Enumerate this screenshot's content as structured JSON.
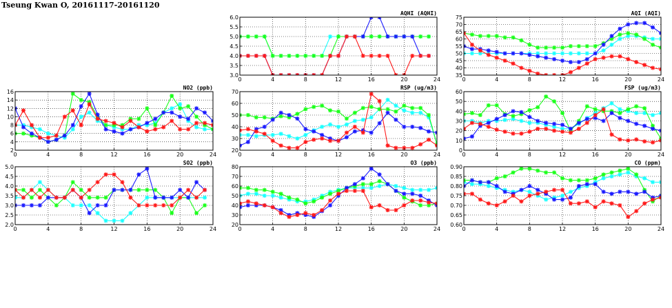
{
  "page": {
    "title": "Tseung Kwan O, 20161117-20161120"
  },
  "colors": {
    "s1": "#ff1a1a",
    "s2": "#1a1aff",
    "s3": "#1aff1a",
    "s4": "#1affff"
  },
  "chart_data": [
    {
      "id": "aqhi",
      "type": "line",
      "title": "AQHI (AQHI)",
      "xlim": [
        0,
        24
      ],
      "ylim": [
        3.0,
        6.0
      ],
      "xticks": [
        0,
        4,
        8,
        12,
        16,
        20,
        24
      ],
      "yticks": [
        3.0,
        3.5,
        4.0,
        4.5,
        5.0,
        5.5,
        6.0
      ],
      "ydecimals": 1,
      "grid": true,
      "series": [
        {
          "color": "s1",
          "values": [
            4,
            4,
            4,
            4,
            3,
            3,
            3,
            3,
            3,
            3,
            3,
            4,
            4,
            5,
            5,
            4,
            4,
            4,
            4,
            3,
            3,
            4,
            4,
            4
          ]
        },
        {
          "color": "s2",
          "values": [
            4,
            4,
            4,
            4,
            3,
            3,
            3,
            3,
            3,
            3,
            3,
            4,
            4,
            5,
            5,
            5,
            6,
            6,
            5,
            5,
            5,
            5,
            4,
            4
          ]
        },
        {
          "color": "s3",
          "values": [
            5,
            5,
            5,
            5,
            4,
            4,
            4,
            4,
            4,
            4,
            4,
            4,
            5,
            5,
            5,
            5,
            5,
            5,
            5,
            5,
            5,
            5,
            5,
            5
          ]
        },
        {
          "color": "s4",
          "values": [
            5,
            5,
            5,
            5,
            4,
            4,
            4,
            4,
            4,
            4,
            4,
            5,
            5,
            5,
            5,
            5,
            5,
            5,
            5,
            5,
            5,
            5,
            5,
            5
          ]
        }
      ]
    },
    {
      "id": "aqi",
      "type": "line",
      "title": "AQI (AQI)",
      "xlim": [
        0,
        24
      ],
      "ylim": [
        35,
        75
      ],
      "xticks": [
        0,
        4,
        8,
        12,
        16,
        20,
        24
      ],
      "yticks": [
        35,
        40,
        45,
        50,
        55,
        60,
        65,
        70,
        75
      ],
      "ydecimals": 0,
      "grid": true,
      "series": [
        {
          "color": "s1",
          "values": [
            64,
            56,
            52,
            49,
            47,
            45,
            43,
            40,
            38,
            36,
            35,
            35,
            35,
            37,
            40,
            43,
            46,
            47,
            48,
            48,
            46,
            44,
            42,
            40,
            39
          ]
        },
        {
          "color": "s2",
          "values": [
            55,
            53,
            53,
            52,
            51,
            50,
            50,
            50,
            49,
            48,
            47,
            46,
            45,
            44,
            44,
            46,
            50,
            56,
            62,
            67,
            70,
            71,
            71,
            68,
            64
          ]
        },
        {
          "color": "s3",
          "values": [
            64,
            63,
            62,
            62,
            62,
            61,
            61,
            59,
            56,
            54,
            54,
            54,
            54,
            55,
            55,
            55,
            55,
            57,
            60,
            63,
            64,
            63,
            60,
            56,
            54
          ]
        },
        {
          "color": "s4",
          "values": [
            50,
            50,
            50,
            50,
            50,
            50,
            50,
            50,
            50,
            50,
            50,
            50,
            50,
            50,
            50,
            50,
            50,
            52,
            56,
            60,
            62,
            62,
            61,
            60,
            60
          ]
        }
      ]
    },
    {
      "id": "no2",
      "type": "line",
      "title": "NO2 (ppb)",
      "xlim": [
        0,
        24
      ],
      "ylim": [
        2,
        16
      ],
      "xticks": [
        0,
        4,
        8,
        12,
        16,
        20,
        24
      ],
      "yticks": [
        2,
        4,
        6,
        8,
        10,
        12,
        14,
        16
      ],
      "ydecimals": 0,
      "grid": true,
      "series": [
        {
          "color": "s1",
          "values": [
            8,
            11.5,
            8,
            5,
            5,
            5.5,
            10,
            11.5,
            8,
            13,
            9.5,
            9,
            8.5,
            7.5,
            9,
            7.5,
            6.5,
            7,
            7.5,
            9,
            7,
            7,
            8.5,
            8.5,
            8
          ]
        },
        {
          "color": "s2",
          "values": [
            12,
            7.5,
            6,
            5,
            4,
            4.5,
            5.5,
            8,
            12.5,
            15.5,
            10.5,
            7,
            6.5,
            6,
            7,
            7.5,
            8.5,
            9.5,
            11,
            11,
            10,
            9.5,
            12,
            11,
            9
          ]
        },
        {
          "color": "s3",
          "values": [
            6,
            6,
            5.5,
            5,
            4,
            4.5,
            5.5,
            15.5,
            14,
            13.5,
            10,
            8,
            8,
            8,
            9.5,
            9.5,
            12,
            8,
            11,
            15,
            12,
            12.5,
            10,
            8,
            7
          ]
        },
        {
          "color": "s4",
          "values": [
            8,
            8,
            7.5,
            7,
            6,
            5.5,
            5,
            7,
            10,
            11,
            9,
            8,
            7.5,
            7,
            7,
            8,
            8,
            8.5,
            11,
            12,
            13,
            9,
            7.5,
            7,
            7
          ]
        }
      ]
    },
    {
      "id": "rsp",
      "type": "line",
      "title": "RSP (ug/m3)",
      "xlim": [
        0,
        24
      ],
      "ylim": [
        20,
        70
      ],
      "xticks": [
        0,
        4,
        8,
        12,
        16,
        20,
        24
      ],
      "yticks": [
        20,
        30,
        40,
        50,
        60,
        70
      ],
      "ydecimals": 0,
      "grid": true,
      "series": [
        {
          "color": "s1",
          "values": [
            37,
            38,
            36,
            34,
            28,
            24,
            22,
            22,
            27,
            29,
            30,
            28,
            28,
            35,
            40,
            35,
            68,
            62,
            24,
            22,
            22,
            22,
            25,
            29,
            24
          ]
        },
        {
          "color": "s2",
          "values": [
            24,
            27,
            38,
            40,
            46,
            52,
            50,
            47,
            38,
            36,
            33,
            30,
            28,
            31,
            36,
            37,
            35,
            43,
            52,
            46,
            40,
            40,
            39,
            36,
            35
          ]
        },
        {
          "color": "s3",
          "values": [
            50,
            50,
            48,
            48,
            47,
            49,
            48,
            51,
            55,
            57,
            58,
            54,
            53,
            47,
            52,
            56,
            57,
            55,
            55,
            53,
            58,
            56,
            56,
            50,
            25
          ]
        },
        {
          "color": "s4",
          "values": [
            33,
            33,
            32,
            33,
            33,
            34,
            32,
            30,
            33,
            37,
            40,
            42,
            40,
            42,
            45,
            46,
            48,
            55,
            63,
            58,
            54,
            52,
            52,
            48,
            25
          ]
        }
      ]
    },
    {
      "id": "fsp",
      "type": "line",
      "title": "FSP (ug/m3)",
      "xlim": [
        0,
        24
      ],
      "ylim": [
        0,
        60
      ],
      "xticks": [
        0,
        4,
        8,
        12,
        16,
        20,
        24
      ],
      "yticks": [
        0,
        10,
        20,
        30,
        40,
        50,
        60
      ],
      "ydecimals": 0,
      "grid": true,
      "series": [
        {
          "color": "s1",
          "values": [
            22,
            28,
            27,
            24,
            21,
            19,
            17,
            17,
            19,
            22,
            22,
            20,
            19,
            18,
            22,
            28,
            36,
            42,
            16,
            11,
            10,
            11,
            9,
            8,
            10
          ]
        },
        {
          "color": "s2",
          "values": [
            12,
            14,
            25,
            28,
            32,
            36,
            40,
            39,
            34,
            30,
            28,
            27,
            26,
            22,
            28,
            32,
            33,
            30,
            38,
            33,
            30,
            27,
            25,
            22,
            20
          ]
        },
        {
          "color": "s3",
          "values": [
            37,
            38,
            36,
            46,
            46,
            37,
            35,
            37,
            41,
            44,
            55,
            50,
            38,
            20,
            30,
            45,
            42,
            40,
            40,
            38,
            42,
            45,
            43,
            25,
            12
          ]
        },
        {
          "color": "s4",
          "values": [
            30,
            30,
            28,
            30,
            30,
            31,
            32,
            30,
            28,
            28,
            26,
            24,
            22,
            22,
            27,
            33,
            38,
            43,
            48,
            42,
            40,
            38,
            38,
            36,
            38
          ]
        }
      ]
    },
    {
      "id": "so2",
      "type": "line",
      "title": "SO2 (ppb)",
      "xlim": [
        0,
        24
      ],
      "ylim": [
        2.0,
        5.0
      ],
      "xticks": [
        0,
        4,
        8,
        12,
        16,
        20,
        24
      ],
      "yticks": [
        2.0,
        2.5,
        3.0,
        3.5,
        4.0,
        4.5,
        5.0
      ],
      "ydecimals": 1,
      "grid": true,
      "series": [
        {
          "color": "s1",
          "values": [
            3.8,
            3.4,
            3.8,
            3.4,
            3.8,
            3.4,
            3.4,
            3.8,
            3.4,
            3.8,
            4.2,
            4.6,
            4.6,
            4.2,
            3.4,
            3.0,
            3.0,
            3.0,
            3.0,
            3.0,
            3.4,
            3.8,
            3.4,
            3.8
          ]
        },
        {
          "color": "s2",
          "values": [
            3.0,
            3.0,
            3.0,
            3.0,
            3.4,
            3.4,
            3.4,
            3.8,
            3.4,
            2.6,
            3.0,
            3.0,
            3.8,
            3.8,
            3.8,
            4.6,
            4.9,
            3.4,
            3.4,
            3.4,
            3.8,
            3.4,
            4.2,
            3.8
          ]
        },
        {
          "color": "s3",
          "values": [
            3.8,
            3.8,
            3.4,
            3.8,
            3.4,
            3.0,
            3.4,
            4.2,
            3.8,
            3.4,
            3.4,
            3.4,
            3.8,
            3.8,
            3.8,
            3.8,
            3.8,
            3.8,
            3.4,
            2.6,
            3.4,
            3.4,
            2.6,
            3.0
          ]
        },
        {
          "color": "s4",
          "values": [
            3.4,
            3.4,
            3.8,
            4.2,
            3.8,
            3.4,
            3.4,
            3.0,
            3.0,
            3.0,
            2.6,
            2.2,
            2.2,
            2.2,
            2.6,
            3.0,
            3.4,
            3.4,
            3.4,
            3.4,
            3.4,
            3.4,
            3.4,
            3.4
          ]
        }
      ]
    },
    {
      "id": "o3",
      "type": "line",
      "title": "O3 (ppb)",
      "xlim": [
        0,
        24
      ],
      "ylim": [
        20,
        80
      ],
      "xticks": [
        0,
        4,
        8,
        12,
        16,
        20,
        24
      ],
      "yticks": [
        20,
        30,
        40,
        50,
        60,
        70,
        80
      ],
      "ydecimals": 0,
      "grid": true,
      "series": [
        {
          "color": "s1",
          "values": [
            42,
            44,
            42,
            40,
            38,
            32,
            28,
            30,
            32,
            30,
            35,
            45,
            52,
            55,
            55,
            55,
            38,
            40,
            35,
            35,
            40,
            45,
            45,
            43,
            42
          ]
        },
        {
          "color": "s2",
          "values": [
            38,
            40,
            40,
            40,
            38,
            35,
            30,
            32,
            30,
            28,
            34,
            40,
            50,
            58,
            62,
            68,
            78,
            72,
            62,
            55,
            52,
            52,
            50,
            45,
            40
          ]
        },
        {
          "color": "s3",
          "values": [
            58,
            58,
            56,
            56,
            54,
            52,
            48,
            46,
            42,
            44,
            48,
            52,
            55,
            58,
            60,
            62,
            62,
            65,
            62,
            55,
            48,
            44,
            40,
            40,
            42
          ]
        },
        {
          "color": "s4",
          "values": [
            50,
            52,
            52,
            50,
            50,
            48,
            46,
            44,
            44,
            46,
            50,
            54,
            56,
            58,
            58,
            58,
            58,
            60,
            62,
            60,
            58,
            56,
            56,
            56,
            58
          ]
        }
      ]
    },
    {
      "id": "co",
      "type": "line",
      "title": "CO (ppm)",
      "xlim": [
        0,
        24
      ],
      "ylim": [
        0.6,
        0.9
      ],
      "xticks": [
        0,
        4,
        8,
        12,
        16,
        20,
        24
      ],
      "yticks": [
        0.6,
        0.65,
        0.7,
        0.75,
        0.8,
        0.85,
        0.9
      ],
      "ydecimals": 2,
      "grid": true,
      "series": [
        {
          "color": "s1",
          "values": [
            0.76,
            0.76,
            0.73,
            0.71,
            0.7,
            0.72,
            0.75,
            0.72,
            0.75,
            0.76,
            0.77,
            0.78,
            0.78,
            0.71,
            0.71,
            0.72,
            0.69,
            0.72,
            0.71,
            0.7,
            0.64,
            0.67,
            0.71,
            0.73,
            0.74
          ]
        },
        {
          "color": "s2",
          "values": [
            0.8,
            0.83,
            0.82,
            0.82,
            0.8,
            0.77,
            0.76,
            0.78,
            0.8,
            0.78,
            0.76,
            0.73,
            0.73,
            0.74,
            0.8,
            0.81,
            0.81,
            0.77,
            0.76,
            0.77,
            0.77,
            0.76,
            0.77,
            0.74,
            0.75
          ]
        },
        {
          "color": "s3",
          "values": [
            0.83,
            0.83,
            0.82,
            0.82,
            0.84,
            0.85,
            0.87,
            0.89,
            0.89,
            0.88,
            0.87,
            0.87,
            0.84,
            0.83,
            0.83,
            0.83,
            0.84,
            0.86,
            0.87,
            0.88,
            0.89,
            0.86,
            0.78,
            0.72,
            0.75
          ]
        },
        {
          "color": "s4",
          "values": [
            0.82,
            0.81,
            0.81,
            0.8,
            0.79,
            0.78,
            0.77,
            0.78,
            0.77,
            0.75,
            0.73,
            0.74,
            0.75,
            0.77,
            0.79,
            0.8,
            0.82,
            0.84,
            0.85,
            0.86,
            0.87,
            0.85,
            0.84,
            0.82,
            0.82
          ]
        }
      ]
    }
  ]
}
